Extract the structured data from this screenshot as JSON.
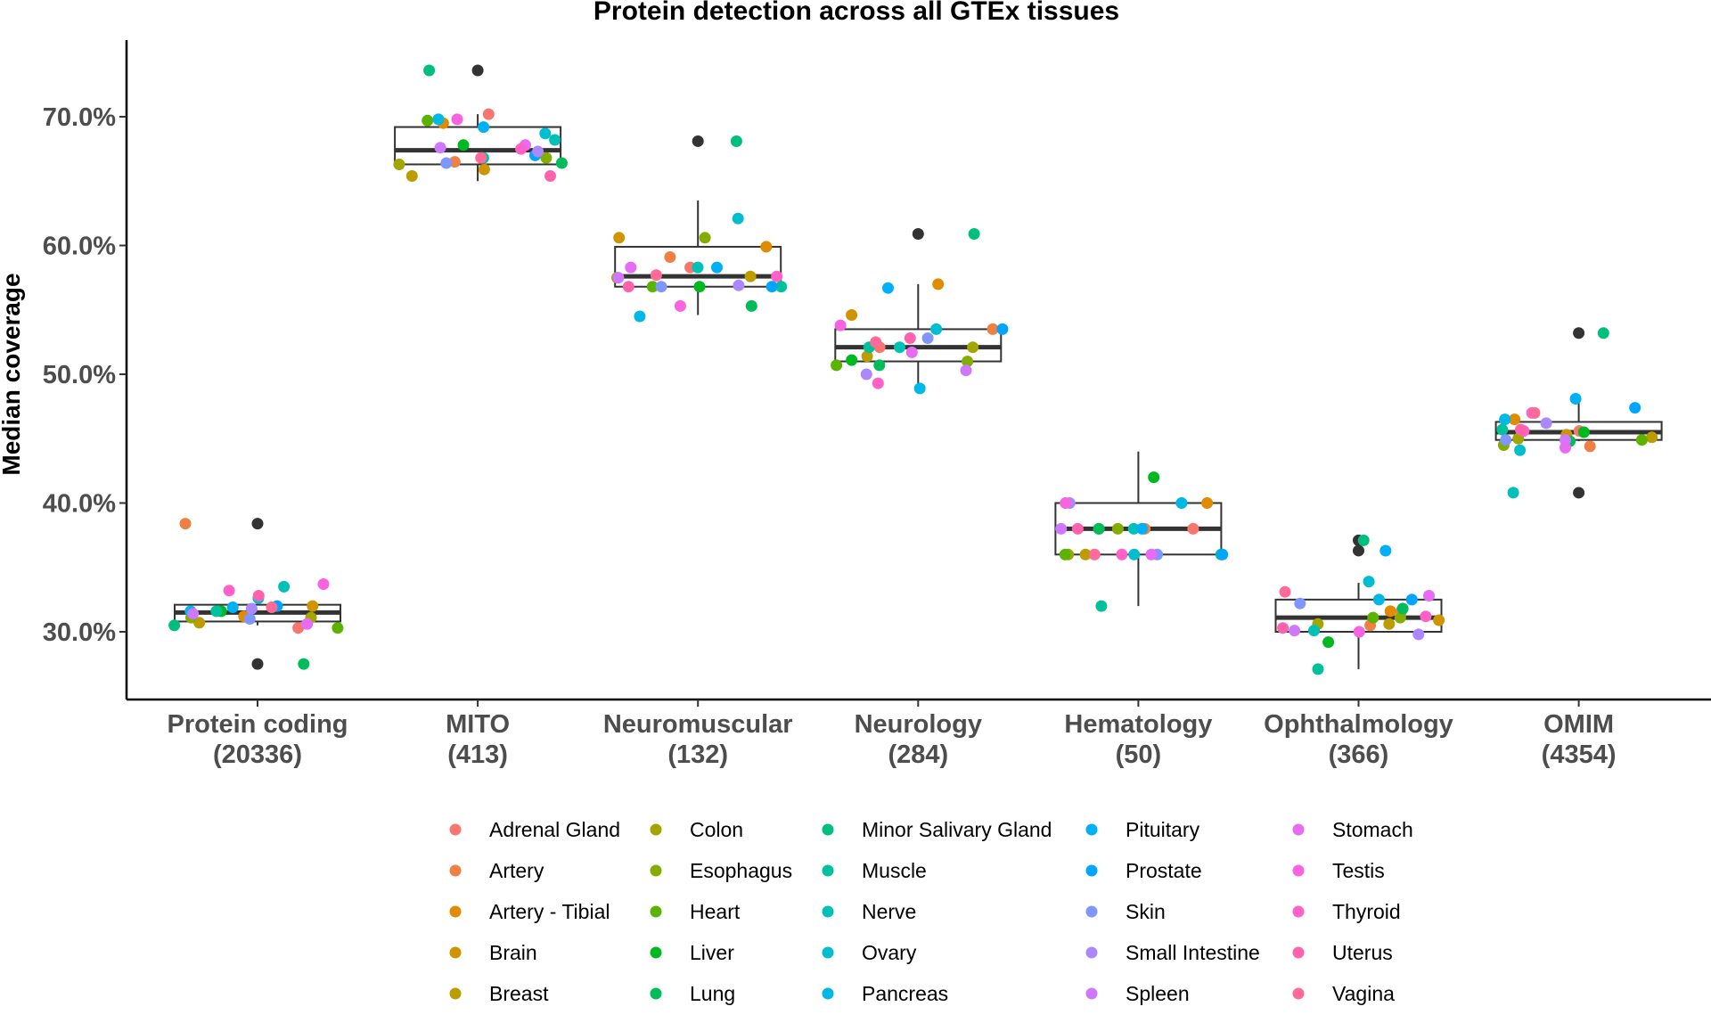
{
  "chart_data": {
    "type": "box",
    "title": "Protein detection across all GTEx tissues",
    "xlabel": "",
    "ylabel": "Median coverage",
    "ylim": [
      25.0,
      76.5
    ],
    "y_ticks": [
      30,
      40,
      50,
      60,
      70
    ],
    "y_tick_labels": [
      "30.0%",
      "40.0%",
      "50.0%",
      "60.0%",
      "70.0%"
    ],
    "grid": false,
    "legend_position": "bottom",
    "categories": [
      {
        "name": "Protein coding",
        "count": "(20336)"
      },
      {
        "name": "MITO",
        "count": "(413)"
      },
      {
        "name": "Neuromuscular",
        "count": "(132)"
      },
      {
        "name": "Neurology",
        "count": "(284)"
      },
      {
        "name": "Hematology",
        "count": "(50)"
      },
      {
        "name": "Ophthalmology",
        "count": "(366)"
      },
      {
        "name": "OMIM",
        "count": "(4354)"
      }
    ],
    "boxes": [
      {
        "category": "Protein coding",
        "whisker_low": 30.5,
        "q1": 30.8,
        "median": 31.5,
        "q3": 32.1,
        "whisker_high": 33.2,
        "outliers": [
          38.4,
          27.5
        ]
      },
      {
        "category": "MITO",
        "whisker_low": 65.0,
        "q1": 66.3,
        "median": 67.4,
        "q3": 69.2,
        "whisker_high": 70.2,
        "outliers": [
          73.6
        ]
      },
      {
        "category": "Neuromuscular",
        "whisker_low": 54.6,
        "q1": 56.8,
        "median": 57.6,
        "q3": 59.9,
        "whisker_high": 63.5,
        "outliers": [
          68.1
        ]
      },
      {
        "category": "Neurology",
        "whisker_low": 49.2,
        "q1": 51.0,
        "median": 52.1,
        "q3": 53.5,
        "whisker_high": 57.0,
        "outliers": [
          60.9
        ]
      },
      {
        "category": "Hematology",
        "whisker_low": 32.0,
        "q1": 36.0,
        "median": 38.0,
        "q3": 40.0,
        "whisker_high": 44.0,
        "outliers": []
      },
      {
        "category": "Ophthalmology",
        "whisker_low": 27.1,
        "q1": 30.0,
        "median": 31.1,
        "q3": 32.5,
        "whisker_high": 33.8,
        "outliers": [
          37.1,
          36.3
        ]
      },
      {
        "category": "OMIM",
        "whisker_low": 44.8,
        "q1": 44.9,
        "median": 45.5,
        "q3": 46.3,
        "whisker_high": 48.0,
        "outliers": [
          53.2,
          40.8
        ]
      }
    ],
    "tissues": [
      {
        "name": "Adrenal Gland",
        "color": "#F8766D"
      },
      {
        "name": "Artery",
        "color": "#EE8043"
      },
      {
        "name": "Artery - Tibial",
        "color": "#E08B00"
      },
      {
        "name": "Brain",
        "color": "#CF9400"
      },
      {
        "name": "Breast",
        "color": "#BB9D00"
      },
      {
        "name": "Colon",
        "color": "#A3A500"
      },
      {
        "name": "Esophagus",
        "color": "#85AD00"
      },
      {
        "name": "Heart",
        "color": "#5BB300"
      },
      {
        "name": "Liver",
        "color": "#00B81F"
      },
      {
        "name": "Lung",
        "color": "#00BC59"
      },
      {
        "name": "Minor Salivary Gland",
        "color": "#00BF7D"
      },
      {
        "name": "Muscle",
        "color": "#00C19C"
      },
      {
        "name": "Nerve",
        "color": "#00C0B8"
      },
      {
        "name": "Ovary",
        "color": "#00BDD0"
      },
      {
        "name": "Pancreas",
        "color": "#00B8E5"
      },
      {
        "name": "Pituitary",
        "color": "#00B0F6"
      },
      {
        "name": "Prostate",
        "color": "#00A5FF"
      },
      {
        "name": "Skin",
        "color": "#7F96FF"
      },
      {
        "name": "Small Intestine",
        "color": "#AC88FF"
      },
      {
        "name": "Spleen",
        "color": "#CF78FF"
      },
      {
        "name": "Stomach",
        "color": "#E76BF3"
      },
      {
        "name": "Testis",
        "color": "#F763E0"
      },
      {
        "name": "Thyroid",
        "color": "#FF61C9"
      },
      {
        "name": "Uterus",
        "color": "#FF62AD"
      },
      {
        "name": "Vagina",
        "color": "#FF6A98"
      }
    ],
    "points": [
      {
        "category": "Protein coding",
        "values": [
          30.3,
          38.4,
          31.2,
          32.0,
          30.7,
          31.1,
          31.1,
          30.3,
          31.6,
          27.5,
          30.5,
          31.6,
          33.5,
          32.6,
          31.6,
          31.9,
          32.0,
          31.0,
          31.8,
          31.4,
          30.6,
          33.7,
          33.2,
          32.8,
          31.9
        ]
      },
      {
        "category": "MITO",
        "values": [
          70.2,
          66.5,
          69.5,
          65.9,
          65.4,
          66.3,
          66.8,
          69.7,
          67.8,
          66.4,
          73.6,
          66.8,
          68.2,
          68.7,
          69.8,
          69.2,
          67.0,
          66.4,
          67.3,
          67.6,
          67.8,
          69.8,
          67.5,
          65.4,
          66.8
        ]
      },
      {
        "category": "Neuromuscular",
        "values": [
          58.3,
          59.1,
          59.9,
          60.6,
          57.6,
          57.5,
          60.6,
          56.8,
          56.8,
          55.3,
          68.1,
          56.8,
          58.3,
          62.1,
          54.5,
          58.3,
          56.8,
          56.8,
          56.9,
          57.5,
          58.3,
          55.3,
          57.6,
          56.8,
          57.7
        ]
      },
      {
        "category": "Neurology",
        "values": [
          52.1,
          53.5,
          57.0,
          54.6,
          51.4,
          52.1,
          51.0,
          50.7,
          51.1,
          50.7,
          60.9,
          52.1,
          52.1,
          53.5,
          48.9,
          56.7,
          53.5,
          52.8,
          50.0,
          50.3,
          51.7,
          53.8,
          49.3,
          52.8,
          52.5
        ]
      },
      {
        "category": "Hematology",
        "values": [
          38.0,
          38.0,
          40.0,
          38.0,
          36.0,
          36.0,
          38.0,
          36.0,
          42.0,
          38.0,
          36.0,
          32.0,
          38.0,
          36.0,
          40.0,
          38.0,
          36.0,
          36.0,
          40.0,
          38.0,
          36.0,
          40.0,
          36.0,
          38.0,
          36.0
        ]
      },
      {
        "category": "Ophthalmology",
        "values": [
          31.6,
          30.5,
          31.6,
          30.9,
          30.6,
          30.6,
          31.1,
          31.1,
          29.2,
          31.8,
          37.1,
          27.1,
          30.1,
          33.9,
          32.5,
          36.3,
          32.5,
          32.2,
          29.8,
          30.1,
          32.8,
          30.0,
          31.2,
          30.3,
          33.1
        ]
      },
      {
        "category": "OMIM",
        "values": [
          45.6,
          44.4,
          46.5,
          45.3,
          45.1,
          45.0,
          44.5,
          44.9,
          45.5,
          44.8,
          53.2,
          45.7,
          40.8,
          44.1,
          46.5,
          48.1,
          47.4,
          44.9,
          46.2,
          44.9,
          44.3,
          47.0,
          45.6,
          45.7,
          47.0
        ]
      }
    ],
    "outlier_color": "#333333",
    "legend": {
      "columns": 5,
      "rows": 5
    }
  }
}
